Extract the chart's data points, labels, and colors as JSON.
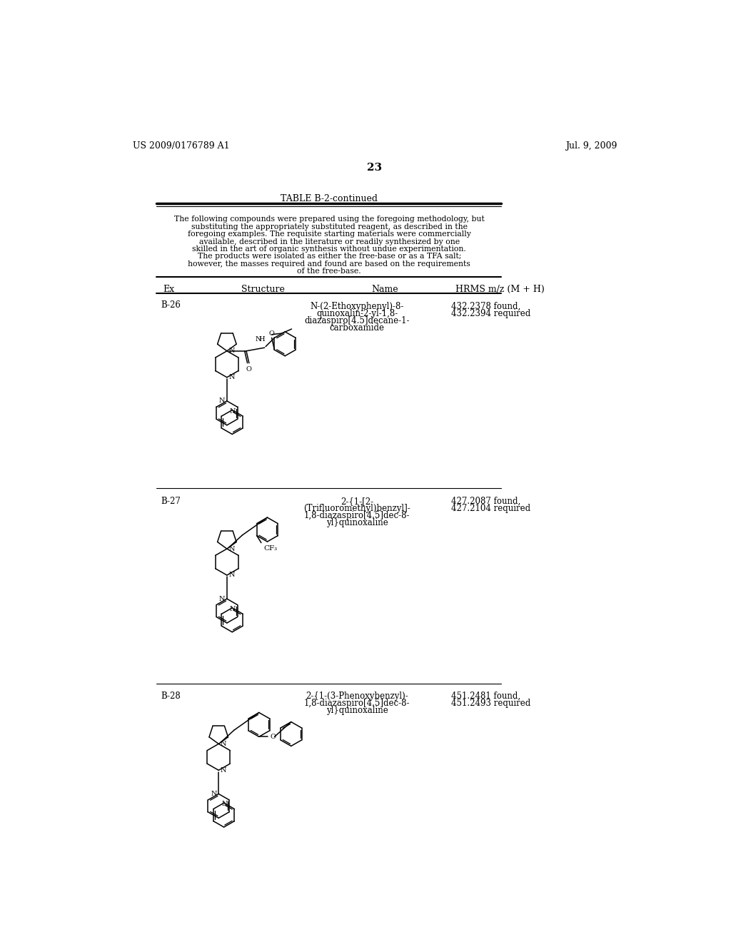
{
  "page_number": "23",
  "patent_left": "US 2009/0176789 A1",
  "patent_right": "Jul. 9, 2009",
  "table_title": "TABLE B-2-continued",
  "table_note": "The following compounds were prepared using the foregoing methodology, but\nsubstituting the appropriately substituted reagent, as described in the\nforegoing examples. The requisite starting materials were commercially\navailable, described in the literature or readily synthesized by one\nskilled in the art of organic synthesis without undue experimentation.\nThe products were isolated as either the free-base or as a TFA salt;\nhowever, the masses required and found are based on the requirements\nof the free-base.",
  "col_headers": [
    "Ex",
    "Structure",
    "Name",
    "HRMS m/z (M + H)"
  ],
  "rows": [
    {
      "ex": "B-26",
      "name": "N-(2-Ethoxyphenyl)-8-\nquinoxalin-2-yl-1,8-\ndiazaspiro[4.5]decane-1-\ncarboxamide",
      "hrms": "432.2378 found,\n432.2394 required"
    },
    {
      "ex": "B-27",
      "name": "2-{1-[2-\n(Trifluoromethyl)benzyl]-\n1,8-diazaspiro[4.5]dec-8-\nyl}quinoxaline",
      "hrms": "427.2087 found,\n427.2104 required"
    },
    {
      "ex": "B-28",
      "name": "2-{1-(3-Phenoxybenzyl)-\n1,8-diazaspiro[4.5]dec-8-\nyl}quinoxaline",
      "hrms": "451.2481 found,\n451.2493 required"
    }
  ],
  "bg_color": "#ffffff",
  "text_color": "#000000",
  "font_size_header": 9,
  "font_size_body": 8.5,
  "font_size_patent": 9,
  "font_size_page": 11
}
